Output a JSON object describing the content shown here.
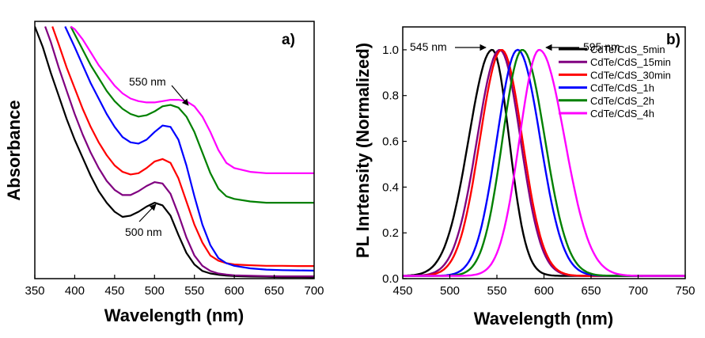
{
  "chart_data": [
    {
      "type": "line",
      "panel_label": "a)",
      "xlabel": "Wavelength (nm)",
      "ylabel": "Absorbance",
      "xlim": [
        350,
        700
      ],
      "ylim": [
        0,
        1
      ],
      "xticks": [
        350,
        400,
        450,
        500,
        550,
        600,
        650,
        700
      ],
      "yticks_shown": false,
      "series": [
        {
          "name": "CdTe/CdS_5min",
          "color": "#000000",
          "x": [
            350,
            360,
            370,
            380,
            390,
            400,
            410,
            420,
            430,
            440,
            450,
            460,
            470,
            480,
            490,
            500,
            510,
            520,
            530,
            540,
            550,
            560,
            570,
            580,
            590,
            600,
            620,
            640,
            660,
            680,
            700
          ],
          "y": [
            0.98,
            0.9,
            0.8,
            0.71,
            0.62,
            0.54,
            0.47,
            0.4,
            0.34,
            0.295,
            0.26,
            0.24,
            0.245,
            0.26,
            0.28,
            0.295,
            0.285,
            0.245,
            0.17,
            0.1,
            0.055,
            0.03,
            0.02,
            0.015,
            0.012,
            0.01,
            0.008,
            0.007,
            0.006,
            0.006,
            0.005
          ]
        },
        {
          "name": "CdTe/CdS_15min",
          "color": "#800080",
          "x": [
            363,
            370,
            380,
            390,
            400,
            410,
            420,
            430,
            440,
            450,
            460,
            470,
            480,
            490,
            500,
            510,
            520,
            530,
            540,
            550,
            560,
            570,
            580,
            590,
            600,
            620,
            640,
            660,
            680,
            700
          ],
          "y": [
            0.98,
            0.92,
            0.82,
            0.73,
            0.64,
            0.56,
            0.49,
            0.43,
            0.38,
            0.345,
            0.325,
            0.325,
            0.34,
            0.36,
            0.375,
            0.37,
            0.33,
            0.25,
            0.16,
            0.09,
            0.05,
            0.03,
            0.02,
            0.016,
            0.013,
            0.011,
            0.01,
            0.009,
            0.009,
            0.009
          ]
        },
        {
          "name": "CdTe/CdS_30min",
          "color": "#ff0000",
          "x": [
            372,
            380,
            390,
            400,
            410,
            420,
            430,
            440,
            450,
            460,
            470,
            480,
            490,
            500,
            510,
            520,
            530,
            540,
            550,
            560,
            570,
            580,
            590,
            600,
            620,
            640,
            660,
            680,
            700
          ],
          "y": [
            0.98,
            0.91,
            0.82,
            0.74,
            0.66,
            0.59,
            0.53,
            0.48,
            0.44,
            0.415,
            0.405,
            0.41,
            0.43,
            0.455,
            0.465,
            0.45,
            0.39,
            0.3,
            0.21,
            0.14,
            0.09,
            0.07,
            0.06,
            0.055,
            0.052,
            0.05,
            0.05,
            0.049,
            0.049
          ]
        },
        {
          "name": "CdTe/CdS_1h",
          "color": "#0000ff",
          "x": [
            388,
            400,
            410,
            420,
            430,
            440,
            450,
            460,
            470,
            480,
            490,
            500,
            510,
            520,
            530,
            540,
            550,
            560,
            570,
            580,
            590,
            600,
            620,
            640,
            660,
            680,
            700
          ],
          "y": [
            0.98,
            0.9,
            0.83,
            0.76,
            0.7,
            0.64,
            0.59,
            0.55,
            0.53,
            0.525,
            0.54,
            0.57,
            0.595,
            0.59,
            0.54,
            0.44,
            0.32,
            0.21,
            0.13,
            0.08,
            0.06,
            0.05,
            0.04,
            0.035,
            0.033,
            0.032,
            0.031
          ]
        },
        {
          "name": "CdTe/CdS_2h",
          "color": "#008000",
          "x": [
            395,
            400,
            410,
            420,
            430,
            440,
            450,
            460,
            470,
            480,
            490,
            500,
            510,
            520,
            530,
            540,
            550,
            560,
            570,
            580,
            590,
            600,
            620,
            640,
            660,
            680,
            700
          ],
          "y": [
            0.98,
            0.95,
            0.89,
            0.83,
            0.78,
            0.73,
            0.69,
            0.66,
            0.64,
            0.63,
            0.635,
            0.65,
            0.67,
            0.675,
            0.665,
            0.63,
            0.57,
            0.49,
            0.41,
            0.35,
            0.32,
            0.31,
            0.3,
            0.295,
            0.295,
            0.295,
            0.295
          ]
        },
        {
          "name": "CdTe/CdS_4h",
          "color": "#ff00ff",
          "x": [
            395,
            400,
            410,
            420,
            430,
            440,
            450,
            460,
            470,
            480,
            490,
            500,
            510,
            520,
            530,
            540,
            550,
            560,
            570,
            580,
            590,
            600,
            620,
            640,
            660,
            680,
            700
          ],
          "y": [
            0.98,
            0.97,
            0.93,
            0.88,
            0.83,
            0.79,
            0.75,
            0.72,
            0.7,
            0.69,
            0.685,
            0.685,
            0.69,
            0.695,
            0.695,
            0.69,
            0.67,
            0.63,
            0.57,
            0.5,
            0.45,
            0.43,
            0.415,
            0.41,
            0.41,
            0.41,
            0.41
          ]
        }
      ],
      "annotations": [
        {
          "text": "550 nm",
          "x": 550,
          "y": 0.7
        },
        {
          "text": "500 nm",
          "x": 500,
          "y": 0.3
        }
      ]
    },
    {
      "type": "line",
      "panel_label": "b)",
      "xlabel": "Wavelength (nm)",
      "ylabel": "PL Inrtensity (Normalized)",
      "xlim": [
        450,
        750
      ],
      "ylim": [
        0,
        1.1
      ],
      "xticks": [
        450,
        500,
        550,
        600,
        650,
        700,
        750
      ],
      "yticks": [
        0.0,
        0.2,
        0.4,
        0.6,
        0.8,
        1.0
      ],
      "ytick_labels": [
        "0.0",
        "0.2",
        "0.4",
        "0.6",
        "0.8",
        "1.0"
      ],
      "legend_position": "top-right",
      "series": [
        {
          "name": "CdTe/CdS_5min",
          "color": "#000000",
          "peak": 545,
          "sigma_left": 25,
          "sigma_right": 18
        },
        {
          "name": "CdTe/CdS_15min",
          "color": "#800080",
          "peak": 553,
          "sigma_left": 24,
          "sigma_right": 22
        },
        {
          "name": "CdTe/CdS_30min",
          "color": "#ff0000",
          "peak": 555,
          "sigma_left": 23,
          "sigma_right": 22
        },
        {
          "name": "CdTe/CdS_1h",
          "color": "#0000ff",
          "peak": 572,
          "sigma_left": 22,
          "sigma_right": 24
        },
        {
          "name": "CdTe/CdS_2h",
          "color": "#008000",
          "peak": 577,
          "sigma_left": 21,
          "sigma_right": 24
        },
        {
          "name": "CdTe/CdS_4h",
          "color": "#ff00ff",
          "peak": 595,
          "sigma_left": 21,
          "sigma_right": 27
        }
      ],
      "annotations": [
        {
          "text": "545 nm",
          "x": 545,
          "y": 1.0
        },
        {
          "text": "595 nm",
          "x": 595,
          "y": 1.0
        }
      ]
    }
  ]
}
